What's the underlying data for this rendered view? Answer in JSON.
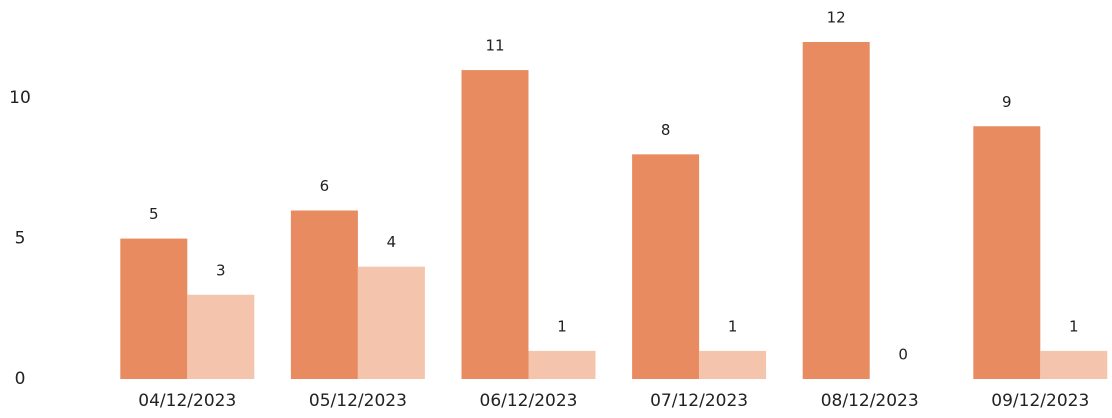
{
  "chart_data": {
    "type": "bar",
    "categories": [
      "04/12/2023",
      "05/12/2023",
      "06/12/2023",
      "07/12/2023",
      "08/12/2023",
      "09/12/2023"
    ],
    "series": [
      {
        "color": "#e98b60",
        "values": [
          5,
          6,
          11,
          8,
          12,
          9
        ]
      },
      {
        "color": "#f5c4ad",
        "values": [
          3,
          4,
          1,
          1,
          0,
          1
        ]
      }
    ],
    "ylim": [
      0,
      12
    ],
    "yticks": [
      0,
      5,
      10
    ],
    "grid": false
  }
}
